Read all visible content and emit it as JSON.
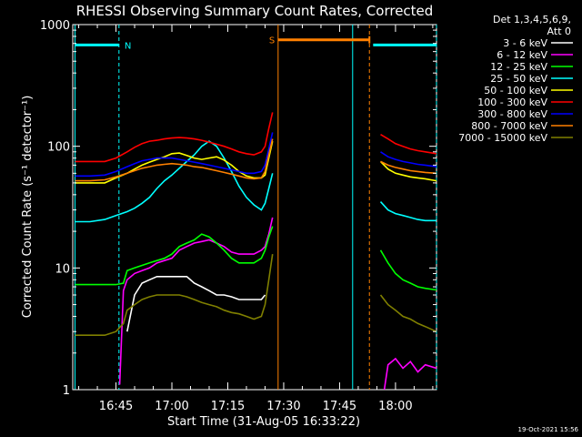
{
  "chart_data": {
    "type": "line",
    "title": "RHESSI Observing Summary Count Rates, Corrected",
    "xlabel": "Start Time (31-Aug-05 16:33:22)",
    "ylabel": "Corrected Count Rate (s⁻¹ detector⁻¹)",
    "ylog": true,
    "ylim": [
      1,
      1000
    ],
    "xlim_min": [
      33.4,
      131
    ],
    "x_unit": "minutes after 16:00 UT",
    "x_ticks": [
      {
        "t": 45,
        "label": "16:45"
      },
      {
        "t": 60,
        "label": "17:00"
      },
      {
        "t": 75,
        "label": "17:15"
      },
      {
        "t": 90,
        "label": "17:30"
      },
      {
        "t": 105,
        "label": "17:45"
      },
      {
        "t": 120,
        "label": "18:00"
      }
    ],
    "y_ticks": [
      {
        "v": 1,
        "label": "1"
      },
      {
        "v": 10,
        "label": "10"
      },
      {
        "v": 100,
        "label": "100"
      },
      {
        "v": 1000,
        "label": "1000"
      }
    ],
    "legend_position": "top-right",
    "legend_header": [
      "Det 1,3,4,5,6,9,",
      "Att 0"
    ],
    "series": [
      {
        "name": "3 - 6 keV",
        "color": "#ffffff",
        "segments": [
          {
            "x": [
              48,
              50,
              52,
              54,
              56,
              58,
              60,
              62,
              64,
              66,
              68,
              70,
              72,
              74,
              76,
              78,
              80,
              82,
              84,
              85
            ],
            "y": [
              3,
              6,
              7.5,
              8,
              8.5,
              8.5,
              8.5,
              8.5,
              8.5,
              7.5,
              7,
              6.5,
              6,
              6,
              5.8,
              5.5,
              5.5,
              5.5,
              5.5,
              6
            ]
          }
        ]
      },
      {
        "name": "6 - 12 keV",
        "color": "#ff00ff",
        "segments": [
          {
            "x": [
              46,
              47,
              48,
              50,
              52,
              54,
              56,
              58,
              60,
              62,
              64,
              66,
              68,
              70,
              72,
              74,
              76,
              78,
              80,
              82,
              84,
              85,
              86,
              87
            ],
            "y": [
              1.1,
              6.5,
              8,
              9,
              9.5,
              10,
              11,
              11.5,
              12,
              14,
              15,
              16,
              16.5,
              17,
              16,
              15,
              13.5,
              13,
              13,
              13,
              14,
              15,
              19,
              26
            ]
          },
          {
            "x": [
              117,
              118,
              120,
              122,
              124,
              126,
              128,
              131
            ],
            "y": [
              1,
              1.6,
              1.8,
              1.5,
              1.7,
              1.4,
              1.6,
              1.5
            ]
          }
        ]
      },
      {
        "name": "12 - 25 keV",
        "color": "#00ff00",
        "segments": [
          {
            "x": [
              34,
              38,
              42,
              45,
              47,
              48,
              50,
              52,
              54,
              56,
              58,
              60,
              62,
              64,
              66,
              68,
              70,
              72,
              74,
              76,
              78,
              80,
              82,
              84,
              85,
              86,
              87
            ],
            "y": [
              7.3,
              7.3,
              7.3,
              7.3,
              7.5,
              9.5,
              10,
              10.5,
              11,
              11.5,
              12,
              13,
              15,
              16,
              17,
              19,
              18,
              16,
              14,
              12,
              11,
              11,
              11,
              12,
              14,
              18,
              22
            ]
          },
          {
            "x": [
              116,
              118,
              120,
              122,
              124,
              126,
              128,
              131
            ],
            "y": [
              14,
              11,
              9,
              8,
              7.5,
              7,
              6.8,
              6.6
            ]
          }
        ]
      },
      {
        "name": "25 - 50 keV",
        "color": "#00ffff",
        "segments": [
          {
            "x": [
              34,
              38,
              42,
              45,
              48,
              50,
              52,
              54,
              56,
              58,
              60,
              62,
              64,
              66,
              68,
              70,
              72,
              74,
              76,
              78,
              80,
              82,
              84,
              85,
              86,
              87
            ],
            "y": [
              24,
              24,
              25,
              27,
              29,
              31,
              34,
              38,
              45,
              52,
              58,
              66,
              75,
              85,
              100,
              110,
              100,
              80,
              62,
              47,
              38,
              33,
              30,
              34,
              45,
              60
            ]
          },
          {
            "x": [
              116,
              118,
              120,
              122,
              124,
              126,
              128,
              131
            ],
            "y": [
              35,
              30,
              28,
              27,
              26,
              25,
              24.5,
              24.5
            ]
          }
        ]
      },
      {
        "name": "50 - 100 keV",
        "color": "#ffff00",
        "segments": [
          {
            "x": [
              34,
              38,
              42,
              45,
              48,
              50,
              52,
              54,
              56,
              58,
              60,
              62,
              64,
              66,
              68,
              70,
              72,
              74,
              76,
              78,
              80,
              82,
              84,
              85,
              86,
              87
            ],
            "y": [
              50,
              50,
              50,
              55,
              60,
              65,
              70,
              74,
              78,
              82,
              87,
              88,
              84,
              80,
              78,
              80,
              82,
              77,
              70,
              62,
              57,
              55,
              55,
              58,
              80,
              110
            ]
          },
          {
            "x": [
              116,
              118,
              120,
              122,
              124,
              126,
              128,
              131
            ],
            "y": [
              75,
              65,
              60,
              58,
              56,
              55,
              54,
              52
            ]
          }
        ]
      },
      {
        "name": "100 - 300 keV",
        "color": "#ff0000",
        "segments": [
          {
            "x": [
              34,
              38,
              42,
              45,
              48,
              50,
              52,
              54,
              56,
              58,
              60,
              62,
              64,
              66,
              68,
              70,
              72,
              74,
              76,
              78,
              80,
              82,
              84,
              85,
              86,
              87
            ],
            "y": [
              75,
              75,
              75,
              80,
              90,
              98,
              105,
              110,
              112,
              115,
              117,
              118,
              117,
              115,
              112,
              108,
              104,
              100,
              95,
              90,
              87,
              85,
              90,
              100,
              140,
              190
            ]
          },
          {
            "x": [
              116,
              118,
              120,
              122,
              124,
              126,
              128,
              131
            ],
            "y": [
              125,
              115,
              105,
              100,
              95,
              92,
              90,
              87
            ]
          }
        ]
      },
      {
        "name": "300 - 800 keV",
        "color": "#0000ff",
        "segments": [
          {
            "x": [
              34,
              38,
              42,
              45,
              48,
              50,
              52,
              54,
              56,
              58,
              60,
              62,
              64,
              66,
              68,
              70,
              72,
              74,
              76,
              78,
              80,
              82,
              84,
              85,
              86,
              87
            ],
            "y": [
              57,
              57,
              58,
              62,
              68,
              72,
              76,
              78,
              80,
              80,
              80,
              78,
              76,
              74,
              72,
              70,
              68,
              66,
              64,
              62,
              60,
              60,
              62,
              70,
              95,
              130
            ]
          },
          {
            "x": [
              116,
              118,
              120,
              122,
              124,
              126,
              128,
              131
            ],
            "y": [
              90,
              82,
              78,
              75,
              73,
              71,
              70,
              68
            ]
          }
        ]
      },
      {
        "name": "800 - 7000 keV",
        "color": "#ff8000",
        "segments": [
          {
            "x": [
              34,
              38,
              42,
              45,
              48,
              50,
              52,
              54,
              56,
              58,
              60,
              62,
              64,
              66,
              68,
              70,
              72,
              74,
              76,
              78,
              80,
              82,
              84,
              85,
              86,
              87
            ],
            "y": [
              52,
              52,
              53,
              56,
              60,
              63,
              66,
              68,
              70,
              71,
              72,
              71,
              70,
              68,
              67,
              65,
              63,
              61,
              59,
              57,
              55,
              54,
              55,
              62,
              85,
              115
            ]
          },
          {
            "x": [
              116,
              118,
              120,
              122,
              124,
              126,
              128,
              131
            ],
            "y": [
              75,
              70,
              67,
              65,
              63,
              62,
              61,
              60
            ]
          }
        ]
      },
      {
        "name": "7000 - 15000 keV",
        "color": "#808000",
        "segments": [
          {
            "x": [
              34,
              38,
              42,
              45,
              47,
              48,
              50,
              52,
              54,
              56,
              58,
              60,
              62,
              64,
              66,
              68,
              70,
              72,
              74,
              76,
              78,
              80,
              82,
              84,
              85,
              86,
              87
            ],
            "y": [
              2.8,
              2.8,
              2.8,
              3,
              3.5,
              4.5,
              5,
              5.5,
              5.8,
              6,
              6,
              6,
              6,
              5.8,
              5.5,
              5.2,
              5,
              4.8,
              4.5,
              4.3,
              4.2,
              4,
              3.8,
              4,
              5,
              8,
              13
            ]
          },
          {
            "x": [
              116,
              118,
              120,
              122,
              124,
              126,
              128,
              131
            ],
            "y": [
              6,
              5,
              4.5,
              4,
              3.8,
              3.5,
              3.3,
              3
            ]
          }
        ]
      }
    ],
    "night_bars": [
      {
        "label": "N",
        "color": "#00ffff",
        "segments": [
          [
            34,
            45.8
          ],
          [
            114,
            131
          ]
        ],
        "y": 680
      }
    ],
    "saa_bars": [
      {
        "label": "S",
        "color": "#ff8000",
        "segments": [
          [
            88.5,
            113
          ]
        ],
        "y": 750
      }
    ],
    "vlines": [
      {
        "t": 34,
        "color": "#00ffff",
        "dash": false
      },
      {
        "t": 45.8,
        "color": "#00ffff",
        "dash": true
      },
      {
        "t": 88.5,
        "color": "#ff8000",
        "dash": false
      },
      {
        "t": 108.5,
        "color": "#00ffff",
        "dash": false
      },
      {
        "t": 113,
        "color": "#ff8000",
        "dash": true
      },
      {
        "t": 131,
        "color": "#00ffff",
        "dash": true
      }
    ]
  },
  "footer_timestamp": "19-Oct-2021 15:56"
}
